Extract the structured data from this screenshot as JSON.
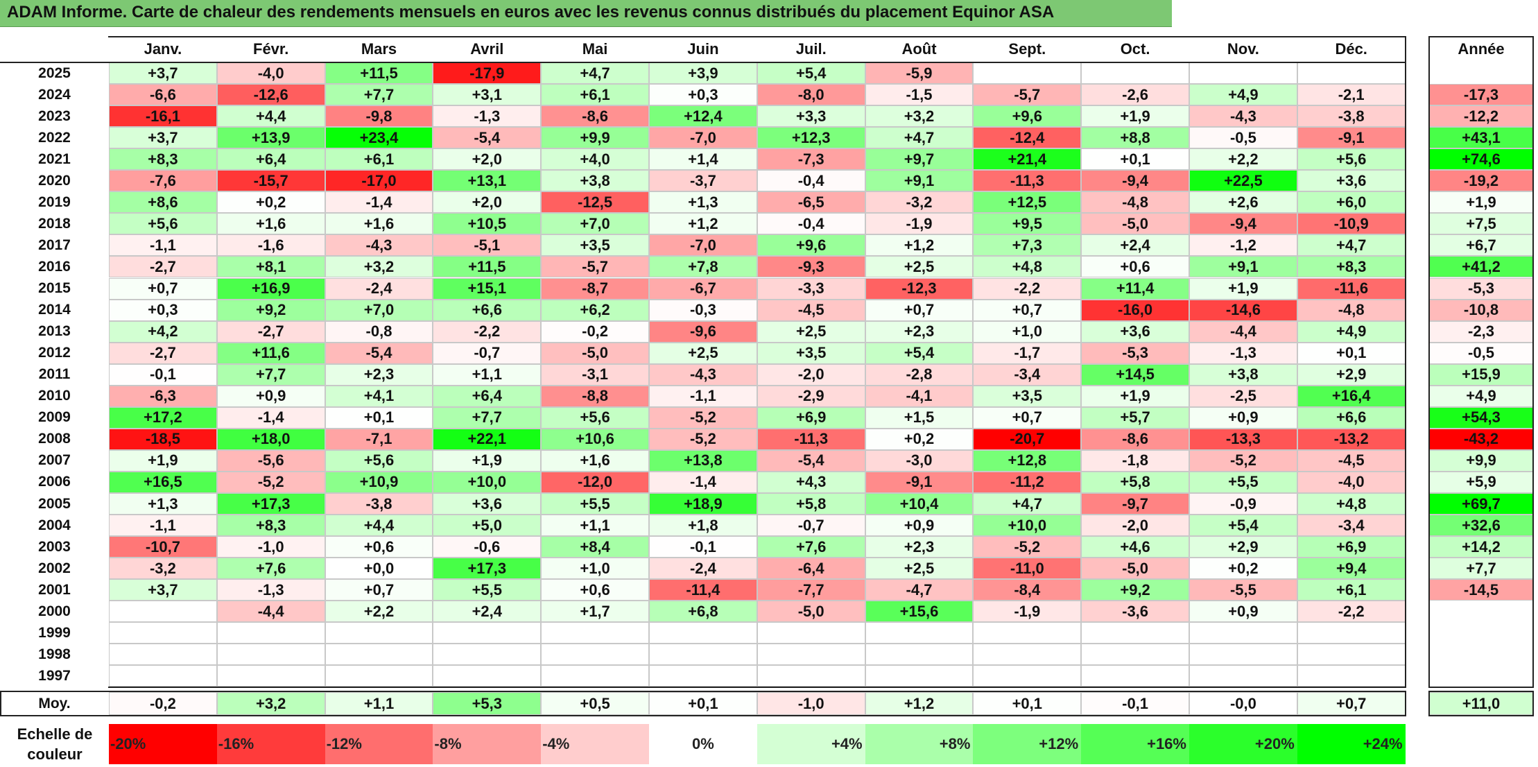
{
  "title": "ADAM Informe. Carte de chaleur des rendements mensuels en euros avec les revenus connus distribués du placement Equinor ASA",
  "chart_data": {
    "type": "heatmap",
    "title": "ADAM Informe. Carte de chaleur des rendements mensuels en euros avec les revenus connus distribués du placement Equinor ASA",
    "columns": [
      "Janv.",
      "Févr.",
      "Mars",
      "Avril",
      "Mai",
      "Juin",
      "Juil.",
      "Août",
      "Sept.",
      "Oct.",
      "Nov.",
      "Déc."
    ],
    "year_header": "Année",
    "rows": [
      {
        "year": "2025",
        "values": [
          3.7,
          -4.0,
          11.5,
          -17.9,
          4.7,
          3.9,
          5.4,
          -5.9,
          null,
          null,
          null,
          null
        ],
        "annual": null
      },
      {
        "year": "2024",
        "values": [
          -6.6,
          -12.6,
          7.7,
          3.1,
          6.1,
          0.3,
          -8.0,
          -1.5,
          -5.7,
          -2.6,
          4.9,
          -2.1
        ],
        "annual": -17.3
      },
      {
        "year": "2023",
        "values": [
          -16.1,
          4.4,
          -9.8,
          -1.3,
          -8.6,
          12.4,
          3.3,
          3.2,
          9.6,
          1.9,
          -4.3,
          -3.8
        ],
        "annual": -12.2
      },
      {
        "year": "2022",
        "values": [
          3.7,
          13.9,
          23.4,
          -5.4,
          9.9,
          -7.0,
          12.3,
          4.7,
          -12.4,
          8.8,
          -0.5,
          -9.1
        ],
        "annual": 43.1
      },
      {
        "year": "2021",
        "values": [
          8.3,
          6.4,
          6.1,
          2.0,
          4.0,
          1.4,
          -7.3,
          9.7,
          21.4,
          0.1,
          2.2,
          5.6
        ],
        "annual": 74.6
      },
      {
        "year": "2020",
        "values": [
          -7.6,
          -15.7,
          -17.0,
          13.1,
          3.8,
          -3.7,
          -0.4,
          9.1,
          -11.3,
          -9.4,
          22.5,
          3.6
        ],
        "annual": -19.2
      },
      {
        "year": "2019",
        "values": [
          8.6,
          0.2,
          -1.4,
          2.0,
          -12.5,
          1.3,
          -6.5,
          -3.2,
          12.5,
          -4.8,
          2.6,
          6.0
        ],
        "annual": 1.9
      },
      {
        "year": "2018",
        "values": [
          5.6,
          1.6,
          1.6,
          10.5,
          7.0,
          1.2,
          -0.4,
          -1.9,
          9.5,
          -5.0,
          -9.4,
          -10.9
        ],
        "annual": 7.5
      },
      {
        "year": "2017",
        "values": [
          -1.1,
          -1.6,
          -4.3,
          -5.1,
          3.5,
          -7.0,
          9.6,
          1.2,
          7.3,
          2.4,
          -1.2,
          4.7
        ],
        "annual": 6.7
      },
      {
        "year": "2016",
        "values": [
          -2.7,
          8.1,
          3.2,
          11.5,
          -5.7,
          7.8,
          -9.3,
          2.5,
          4.8,
          0.6,
          9.1,
          8.3
        ],
        "annual": 41.2
      },
      {
        "year": "2015",
        "values": [
          0.7,
          16.9,
          -2.4,
          15.1,
          -8.7,
          -6.7,
          -3.3,
          -12.3,
          -2.2,
          11.4,
          1.9,
          -11.6
        ],
        "annual": -5.3
      },
      {
        "year": "2014",
        "values": [
          0.3,
          9.2,
          7.0,
          6.6,
          6.2,
          -0.3,
          -4.5,
          0.7,
          0.7,
          -16.0,
          -14.6,
          -4.8
        ],
        "annual": -10.8
      },
      {
        "year": "2013",
        "values": [
          4.2,
          -2.7,
          -0.8,
          -2.2,
          -0.2,
          -9.6,
          2.5,
          2.3,
          1.0,
          3.6,
          -4.4,
          4.9
        ],
        "annual": -2.3
      },
      {
        "year": "2012",
        "values": [
          -2.7,
          11.6,
          -5.4,
          -0.7,
          -5.0,
          2.5,
          3.5,
          5.4,
          -1.7,
          -5.3,
          -1.3,
          0.1
        ],
        "annual": -0.5
      },
      {
        "year": "2011",
        "values": [
          -0.1,
          7.7,
          2.3,
          1.1,
          -3.1,
          -4.3,
          -2.0,
          -2.8,
          -3.4,
          14.5,
          3.8,
          2.9
        ],
        "annual": 15.9
      },
      {
        "year": "2010",
        "values": [
          -6.3,
          0.9,
          4.1,
          6.4,
          -8.8,
          -1.1,
          -2.9,
          -4.1,
          3.5,
          1.9,
          -2.5,
          16.4
        ],
        "annual": 4.9
      },
      {
        "year": "2009",
        "values": [
          17.2,
          -1.4,
          0.1,
          7.7,
          5.6,
          -5.2,
          6.9,
          1.5,
          0.7,
          5.7,
          0.9,
          6.6
        ],
        "annual": 54.3
      },
      {
        "year": "2008",
        "values": [
          -18.5,
          18.0,
          -7.1,
          22.1,
          10.6,
          -5.2,
          -11.3,
          0.2,
          -20.7,
          -8.6,
          -13.3,
          -13.2
        ],
        "annual": -43.2
      },
      {
        "year": "2007",
        "values": [
          1.9,
          -5.6,
          5.6,
          1.9,
          1.6,
          13.8,
          -5.4,
          -3.0,
          12.8,
          -1.8,
          -5.2,
          -4.5
        ],
        "annual": 9.9
      },
      {
        "year": "2006",
        "values": [
          16.5,
          -5.2,
          10.9,
          10.0,
          -12.0,
          -1.4,
          4.3,
          -9.1,
          -11.2,
          5.8,
          5.5,
          -4.0
        ],
        "annual": 5.9
      },
      {
        "year": "2005",
        "values": [
          1.3,
          17.3,
          -3.8,
          3.6,
          5.5,
          18.9,
          5.8,
          10.4,
          4.7,
          -9.7,
          -0.9,
          4.8
        ],
        "annual": 69.7
      },
      {
        "year": "2004",
        "values": [
          -1.1,
          8.3,
          4.4,
          5.0,
          1.1,
          1.8,
          -0.7,
          0.9,
          10.0,
          -2.0,
          5.4,
          -3.4
        ],
        "annual": 32.6
      },
      {
        "year": "2003",
        "values": [
          -10.7,
          -1.0,
          0.6,
          -0.6,
          8.4,
          -0.1,
          7.6,
          2.3,
          -5.2,
          4.6,
          2.9,
          6.9
        ],
        "annual": 14.2
      },
      {
        "year": "2002",
        "values": [
          -3.2,
          7.6,
          0.0,
          17.3,
          1.0,
          -2.4,
          -6.4,
          2.5,
          -11.0,
          -5.0,
          0.2,
          9.4
        ],
        "annual": 7.7
      },
      {
        "year": "2001",
        "values": [
          3.7,
          -1.3,
          0.7,
          5.5,
          0.6,
          -11.4,
          -7.7,
          -4.7,
          -8.4,
          9.2,
          -5.5,
          6.1
        ],
        "annual": -14.5
      },
      {
        "year": "2000",
        "values": [
          null,
          -4.4,
          2.2,
          2.4,
          1.7,
          6.8,
          -5.0,
          15.6,
          -1.9,
          -3.6,
          0.9,
          -2.2
        ],
        "annual": null
      },
      {
        "year": "1999",
        "values": [
          null,
          null,
          null,
          null,
          null,
          null,
          null,
          null,
          null,
          null,
          null,
          null
        ],
        "annual": null
      },
      {
        "year": "1998",
        "values": [
          null,
          null,
          null,
          null,
          null,
          null,
          null,
          null,
          null,
          null,
          null,
          null
        ],
        "annual": null
      },
      {
        "year": "1997",
        "values": [
          null,
          null,
          null,
          null,
          null,
          null,
          null,
          null,
          null,
          null,
          null,
          null
        ],
        "annual": null
      }
    ],
    "average": {
      "label": "Moy.",
      "values": [
        -0.2,
        3.2,
        1.1,
        5.3,
        0.5,
        0.1,
        -1.0,
        1.2,
        0.1,
        -0.1,
        -0.0,
        0.7
      ],
      "annual": 11.0
    },
    "color_scale": {
      "label": "Echelle de couleur",
      "stops": [
        {
          "value": -20,
          "label": "-20%",
          "color": "#ff0000"
        },
        {
          "value": -16,
          "label": "-16%",
          "color": "#ff3b3b"
        },
        {
          "value": -12,
          "label": "-12%",
          "color": "#ff6e6e"
        },
        {
          "value": -8,
          "label": "-8%",
          "color": "#ff9f9f"
        },
        {
          "value": -4,
          "label": "-4%",
          "color": "#ffcdcd"
        },
        {
          "value": 0,
          "label": "0%",
          "color": "#ffffff"
        },
        {
          "value": 4,
          "label": "+4%",
          "color": "#d4ffd4"
        },
        {
          "value": 8,
          "label": "+8%",
          "color": "#aaffaa"
        },
        {
          "value": 12,
          "label": "+12%",
          "color": "#7dff7d"
        },
        {
          "value": 16,
          "label": "+16%",
          "color": "#55ff55"
        },
        {
          "value": 20,
          "label": "+20%",
          "color": "#2bff2b"
        },
        {
          "value": 24,
          "label": "+24%",
          "color": "#00ff00"
        }
      ]
    }
  }
}
